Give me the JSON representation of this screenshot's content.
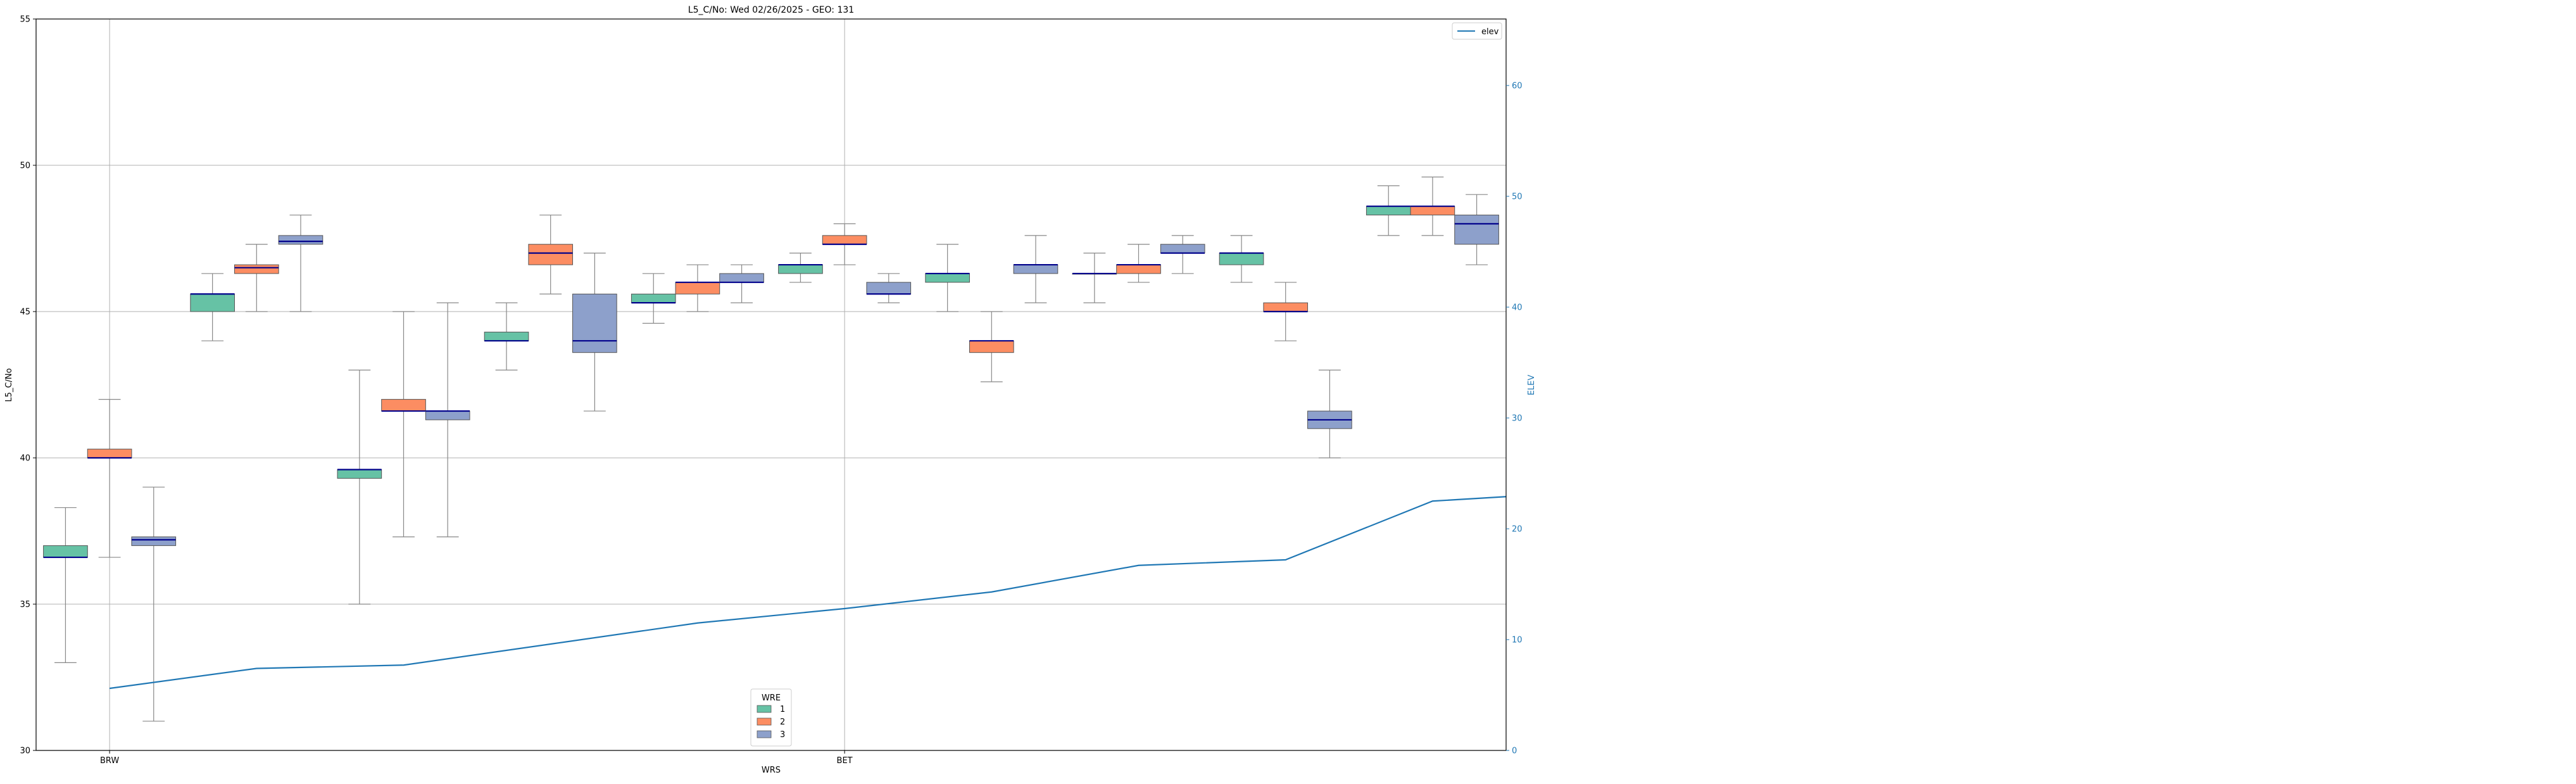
{
  "chart_data": {
    "type": "box",
    "title": "L5_C/No: Wed 02/26/2025 - GEO: 131",
    "xlabel": "WRS",
    "ylabel": "L5_C/No",
    "y2label": "ELEV",
    "ylim": [
      30,
      55
    ],
    "y2lim": [
      0,
      66
    ],
    "yticks": [
      30,
      35,
      40,
      45,
      50,
      55
    ],
    "y2ticks": [
      0,
      10,
      20,
      30,
      40,
      50,
      60
    ],
    "grid": true,
    "x_labeled_ticks": [
      {
        "position": 1,
        "label": "BRW"
      },
      {
        "position": 11,
        "label": "BET"
      }
    ],
    "x_range": [
      0,
      20
    ],
    "box_width": 0.6,
    "group_offsets": [
      -0.6,
      0,
      0.6
    ],
    "colors": {
      "wre_1": "#66c2a5",
      "wre_2": "#fc8d62",
      "wre_3": "#8da0cb",
      "median": "#00008b",
      "whisker": "#888888",
      "elev_line": "#1f77b4",
      "axis2": "#1f77b4",
      "grid": "#b0b0b0"
    },
    "legend_wre": {
      "title": "WRE",
      "placement": "bottom-center",
      "entries": [
        "1",
        "2",
        "3"
      ]
    },
    "legend_elev": {
      "placement": "top-right",
      "entries": [
        "elev"
      ]
    },
    "boxes": [
      {
        "center": 1,
        "wre": 1,
        "whislo": 33.0,
        "q1": 36.6,
        "med": 36.6,
        "q3": 37.0,
        "whishi": 38.3
      },
      {
        "center": 1,
        "wre": 2,
        "whislo": 36.6,
        "q1": 40.0,
        "med": 40.0,
        "q3": 40.3,
        "whishi": 42.0
      },
      {
        "center": 1,
        "wre": 3,
        "whislo": 31.0,
        "q1": 37.0,
        "med": 37.2,
        "q3": 37.3,
        "whishi": 39.0
      },
      {
        "center": 3,
        "wre": 1,
        "whislo": 44.0,
        "q1": 45.0,
        "med": 45.6,
        "q3": 45.6,
        "whishi": 46.3
      },
      {
        "center": 3,
        "wre": 2,
        "whislo": 45.0,
        "q1": 46.3,
        "med": 46.5,
        "q3": 46.6,
        "whishi": 47.3
      },
      {
        "center": 3,
        "wre": 3,
        "whislo": 45.0,
        "q1": 47.3,
        "med": 47.4,
        "q3": 47.6,
        "whishi": 48.3
      },
      {
        "center": 5,
        "wre": 1,
        "whislo": 35.0,
        "q1": 39.3,
        "med": 39.6,
        "q3": 39.6,
        "whishi": 43.0
      },
      {
        "center": 5,
        "wre": 2,
        "whislo": 37.3,
        "q1": 41.6,
        "med": 41.6,
        "q3": 42.0,
        "whishi": 45.0
      },
      {
        "center": 5,
        "wre": 3,
        "whislo": 37.3,
        "q1": 41.3,
        "med": 41.6,
        "q3": 41.6,
        "whishi": 45.3
      },
      {
        "center": 7,
        "wre": 1,
        "whislo": 43.0,
        "q1": 44.0,
        "med": 44.0,
        "q3": 44.3,
        "whishi": 45.3
      },
      {
        "center": 7,
        "wre": 2,
        "whislo": 45.6,
        "q1": 46.6,
        "med": 47.0,
        "q3": 47.3,
        "whishi": 48.3
      },
      {
        "center": 7,
        "wre": 3,
        "whislo": 41.6,
        "q1": 43.6,
        "med": 44.0,
        "q3": 45.6,
        "whishi": 47.0
      },
      {
        "center": 9,
        "wre": 1,
        "whislo": 44.6,
        "q1": 45.3,
        "med": 45.3,
        "q3": 45.6,
        "whishi": 46.3
      },
      {
        "center": 9,
        "wre": 2,
        "whislo": 45.0,
        "q1": 45.6,
        "med": 46.0,
        "q3": 46.0,
        "whishi": 46.6
      },
      {
        "center": 9,
        "wre": 3,
        "whislo": 45.3,
        "q1": 46.0,
        "med": 46.0,
        "q3": 46.3,
        "whishi": 46.6
      },
      {
        "center": 11,
        "wre": 1,
        "whislo": 46.0,
        "q1": 46.3,
        "med": 46.6,
        "q3": 46.6,
        "whishi": 47.0
      },
      {
        "center": 11,
        "wre": 2,
        "whislo": 46.6,
        "q1": 47.3,
        "med": 47.3,
        "q3": 47.6,
        "whishi": 48.0
      },
      {
        "center": 11,
        "wre": 3,
        "whislo": 45.3,
        "q1": 45.6,
        "med": 45.6,
        "q3": 46.0,
        "whishi": 46.3
      },
      {
        "center": 13,
        "wre": 1,
        "whislo": 45.0,
        "q1": 46.0,
        "med": 46.3,
        "q3": 46.3,
        "whishi": 47.3
      },
      {
        "center": 13,
        "wre": 2,
        "whislo": 42.6,
        "q1": 43.6,
        "med": 44.0,
        "q3": 44.0,
        "whishi": 45.0
      },
      {
        "center": 13,
        "wre": 3,
        "whislo": 45.3,
        "q1": 46.3,
        "med": 46.6,
        "q3": 46.6,
        "whishi": 47.6
      },
      {
        "center": 15,
        "wre": 1,
        "whislo": 45.3,
        "q1": 46.3,
        "med": 46.3,
        "q3": 46.3,
        "whishi": 47.0
      },
      {
        "center": 15,
        "wre": 2,
        "whislo": 46.0,
        "q1": 46.3,
        "med": 46.6,
        "q3": 46.6,
        "whishi": 47.3
      },
      {
        "center": 15,
        "wre": 3,
        "whislo": 46.3,
        "q1": 47.0,
        "med": 47.0,
        "q3": 47.3,
        "whishi": 47.6
      },
      {
        "center": 17,
        "wre": 1,
        "whislo": 46.0,
        "q1": 46.6,
        "med": 47.0,
        "q3": 47.0,
        "whishi": 47.6
      },
      {
        "center": 17,
        "wre": 2,
        "whislo": 44.0,
        "q1": 45.0,
        "med": 45.0,
        "q3": 45.3,
        "whishi": 46.0
      },
      {
        "center": 17,
        "wre": 3,
        "whislo": 40.0,
        "q1": 41.0,
        "med": 41.3,
        "q3": 41.6,
        "whishi": 43.0
      },
      {
        "center": 19,
        "wre": 1,
        "whislo": 47.6,
        "q1": 48.3,
        "med": 48.6,
        "q3": 48.6,
        "whishi": 49.3
      },
      {
        "center": 19,
        "wre": 2,
        "whislo": 47.6,
        "q1": 48.3,
        "med": 48.6,
        "q3": 48.6,
        "whishi": 49.6
      },
      {
        "center": 19,
        "wre": 3,
        "whislo": 46.6,
        "q1": 47.3,
        "med": 48.0,
        "q3": 48.3,
        "whishi": 49.0
      }
    ],
    "elev_series": {
      "name": "elev",
      "x": [
        1,
        3,
        5,
        7,
        9,
        11,
        13,
        15,
        17,
        19,
        20
      ],
      "y": [
        5.6,
        7.4,
        7.7,
        9.6,
        11.5,
        12.8,
        14.3,
        16.7,
        17.2,
        22.5,
        22.9
      ]
    }
  }
}
